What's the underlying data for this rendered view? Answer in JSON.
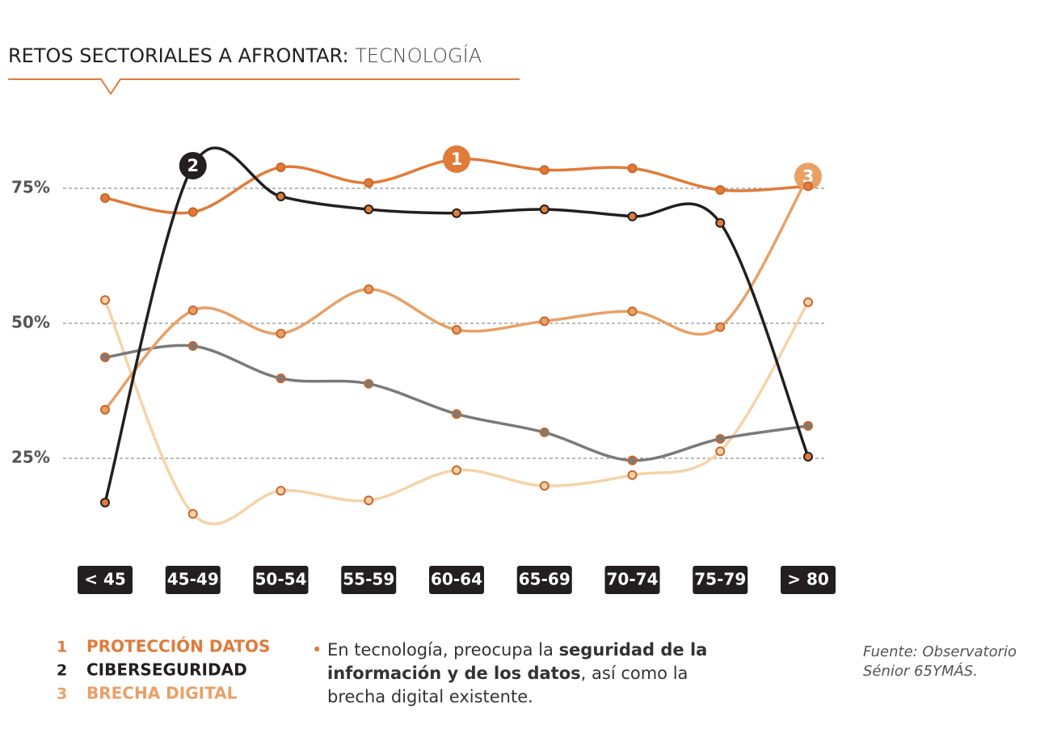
{
  "title": "RETOS SECTORIALES A AFRONTAR:",
  "title_topic": "TECNOLOGÍA",
  "chart_data": {
    "type": "line",
    "categories": [
      "< 45",
      "45-49",
      "50-54",
      "55-59",
      "60-64",
      "65-69",
      "70-74",
      "75-79",
      "> 80"
    ],
    "ylim": [
      8,
      85
    ],
    "yticks": [
      {
        "value": 25,
        "label": "25%"
      },
      {
        "value": 50,
        "label": "50%"
      },
      {
        "value": 75,
        "label": "75%"
      }
    ],
    "grid": true,
    "series": [
      {
        "name": "PROTECCIÓN DATOS",
        "number": "1",
        "color": "#e07b39",
        "values": [
          73.2,
          70.6,
          78.9,
          76.0,
          80.4,
          78.4,
          78.7,
          74.7,
          75.4
        ]
      },
      {
        "name": "CIBERSEGURIDAD",
        "number": "2",
        "color": "#231f20",
        "marker_color": "#e07b39",
        "values": [
          16.8,
          79.2,
          73.5,
          71.1,
          70.4,
          71.1,
          69.8,
          68.6,
          25.3
        ]
      },
      {
        "name": "BRECHA DIGITAL",
        "number": "3",
        "color": "#e8a066",
        "values": [
          34.0,
          52.4,
          48.1,
          56.3,
          48.8,
          50.4,
          52.2,
          49.3,
          77.2
        ]
      },
      {
        "color": "#7a7a7a",
        "values": [
          43.7,
          45.8,
          39.8,
          38.8,
          33.2,
          29.8,
          24.6,
          28.6,
          31.0
        ]
      },
      {
        "color": "#f5d3a8",
        "values": [
          54.3,
          14.7,
          19.0,
          17.2,
          22.8,
          19.9,
          21.9,
          26.3,
          53.9
        ]
      }
    ]
  },
  "note": {
    "before": "En tecnología, preocupa la ",
    "bold": "seguridad de la información y de los datos",
    "after": ", así como la brecha digital existente."
  },
  "source": "Fuente: Observatorio Sénior 65YMÁS."
}
